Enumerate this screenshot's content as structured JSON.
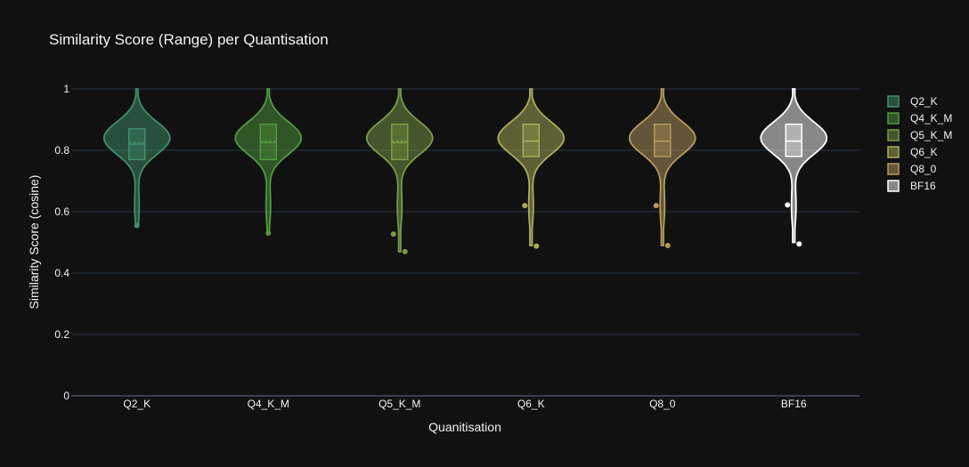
{
  "chart_data": {
    "type": "violin",
    "title": "Similarity Score (Range) per Quantisation",
    "xlabel": "Quanitisation",
    "ylabel": "Similarity Score (cosine)",
    "ylim": [
      0,
      1
    ],
    "yticks": [
      "0",
      "0.2",
      "0.4",
      "0.6",
      "0.8",
      "1"
    ],
    "grid": true,
    "legend_position": "right",
    "categories": [
      "Q2_K",
      "Q4_K_M",
      "Q5_K_M",
      "Q6_K",
      "Q8_0",
      "BF16"
    ],
    "series": [
      {
        "name": "Q2_K",
        "color": "#3f8f6a",
        "min": 0.56,
        "max": 1.0,
        "q1": 0.77,
        "median": 0.82,
        "mean": 0.825,
        "q3": 0.87,
        "outliers": [
          0.555
        ],
        "kde_peak": 0.84,
        "kde_width": 0.9
      },
      {
        "name": "Q4_K_M",
        "color": "#4f9a3e",
        "min": 0.53,
        "max": 1.0,
        "q1": 0.77,
        "median": 0.825,
        "mean": 0.83,
        "q3": 0.885,
        "outliers": [
          0.53
        ],
        "kde_peak": 0.84,
        "kde_width": 0.9
      },
      {
        "name": "Q5_K_M",
        "color": "#7a9c48",
        "min": 0.47,
        "max": 1.0,
        "q1": 0.77,
        "median": 0.825,
        "mean": 0.83,
        "q3": 0.885,
        "outliers": [
          0.527,
          0.47
        ],
        "kde_peak": 0.84,
        "kde_width": 0.9
      },
      {
        "name": "Q6_K",
        "color": "#a9ad5a",
        "min": 0.49,
        "max": 1.0,
        "q1": 0.78,
        "median": 0.83,
        "mean": 0.83,
        "q3": 0.885,
        "outliers": [
          0.62,
          0.488
        ],
        "kde_peak": 0.84,
        "kde_width": 0.9
      },
      {
        "name": "Q8_0",
        "color": "#b69a5e",
        "min": 0.49,
        "max": 1.0,
        "q1": 0.78,
        "median": 0.83,
        "mean": 0.83,
        "q3": 0.885,
        "outliers": [
          0.62,
          0.49
        ],
        "kde_peak": 0.84,
        "kde_width": 0.9
      },
      {
        "name": "BF16",
        "color": "#ffffff",
        "min": 0.5,
        "max": 1.0,
        "q1": 0.78,
        "median": 0.83,
        "mean": 0.83,
        "q3": 0.885,
        "outliers": [
          0.622,
          0.495
        ],
        "kde_peak": 0.84,
        "kde_width": 0.9
      }
    ]
  }
}
